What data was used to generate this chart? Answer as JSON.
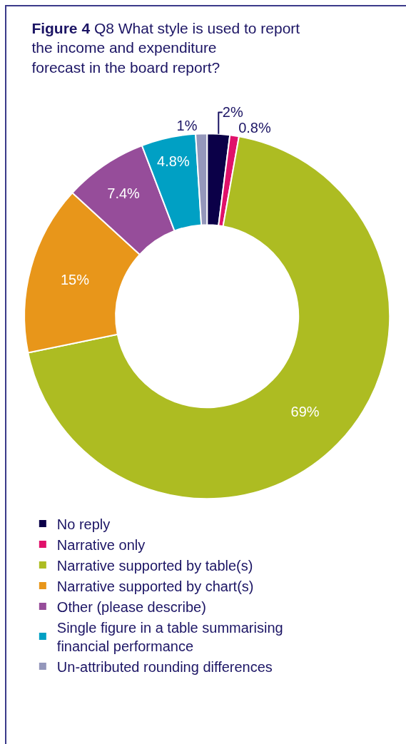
{
  "chart_data": {
    "type": "donut",
    "title": "Figure 4",
    "subtitle": "Q8 What style is used to report the income and expenditure forecast in the board report?",
    "categories": [
      "No reply",
      "Narrative only",
      "Narrative supported by table(s)",
      "Narrative supported by chart(s)",
      "Other (please describe)",
      "Single figure in a table summarising financial performance",
      "Un-attributed rounding differences"
    ],
    "values": [
      2,
      0.8,
      69,
      15,
      7.4,
      4.8,
      1
    ],
    "colors": [
      "#0b0048",
      "#e0116a",
      "#adbc22",
      "#e8961a",
      "#964d9a",
      "#00a0c4",
      "#9497bb"
    ],
    "value_labels": [
      "2%",
      "0.8%",
      "69%",
      "15%",
      "7.4%",
      "4.8%",
      "1%"
    ],
    "legend": "bottom"
  }
}
